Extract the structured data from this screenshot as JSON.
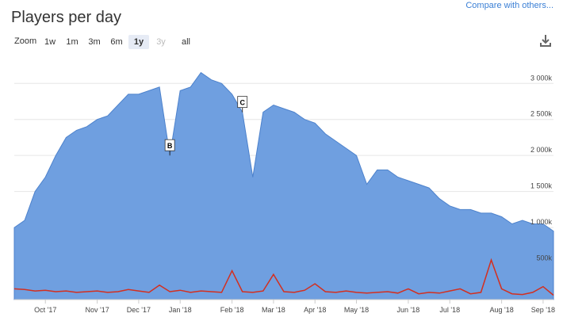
{
  "chart_data": {
    "type": "area",
    "title": "Players per day",
    "compare_link": "Compare with others...",
    "zoom": {
      "label": "Zoom",
      "buttons": [
        "1w",
        "1m",
        "3m",
        "6m",
        "1y",
        "3y",
        "all"
      ],
      "active": "1y",
      "disabled": "3y"
    },
    "categories": [
      null,
      null,
      null,
      "Oct '17",
      null,
      null,
      null,
      null,
      "Nov '17",
      null,
      null,
      null,
      "Dec '17",
      null,
      null,
      null,
      "Jan '18",
      null,
      null,
      null,
      null,
      "Feb '18",
      null,
      null,
      null,
      "Mar '18",
      null,
      null,
      null,
      "Apr '18",
      null,
      null,
      null,
      "May '18",
      null,
      null,
      null,
      null,
      "Jun '18",
      null,
      null,
      null,
      "Jul '18",
      null,
      null,
      null,
      null,
      "Aug '18",
      null,
      null,
      null,
      "Sep '18",
      null
    ],
    "series": [
      {
        "color": "#6f9fe0",
        "values": [
          1000,
          1100,
          1500,
          1700,
          2000,
          2250,
          2350,
          2400,
          2500,
          2550,
          2700,
          2850,
          2850,
          2900,
          2950,
          2000,
          2900,
          2950,
          3150,
          3050,
          3000,
          2850,
          2600,
          1700,
          2600,
          2700,
          2650,
          2600,
          2500,
          2450,
          2300,
          2200,
          2100,
          2000,
          1600,
          1800,
          1800,
          1700,
          1650,
          1600,
          1550,
          1400,
          1300,
          1250,
          1250,
          1200,
          1200,
          1150,
          1050,
          1100,
          1050,
          1050,
          950
        ]
      },
      {
        "color": "#d32f1f",
        "values": [
          150,
          140,
          120,
          130,
          110,
          120,
          100,
          110,
          120,
          100,
          110,
          140,
          120,
          100,
          200,
          110,
          130,
          100,
          120,
          110,
          100,
          400,
          110,
          100,
          120,
          350,
          110,
          100,
          130,
          220,
          110,
          100,
          120,
          100,
          90,
          100,
          110,
          90,
          150,
          80,
          100,
          90,
          120,
          150,
          80,
          100,
          550,
          150,
          80,
          70,
          100,
          180,
          60
        ]
      }
    ],
    "annotations": [
      {
        "text": "B",
        "at": 15
      },
      {
        "text": "C",
        "at": 22
      }
    ],
    "ylim": [
      0,
      3300
    ],
    "yticks": [
      {
        "value": 500,
        "label": "500k"
      },
      {
        "value": 1000,
        "label": "1 000k"
      },
      {
        "value": 1500,
        "label": "1 500k"
      },
      {
        "value": 2000,
        "label": "2 000k"
      },
      {
        "value": 2500,
        "label": "2 500k"
      },
      {
        "value": 3000,
        "label": "3 000k"
      }
    ],
    "grid": true
  }
}
